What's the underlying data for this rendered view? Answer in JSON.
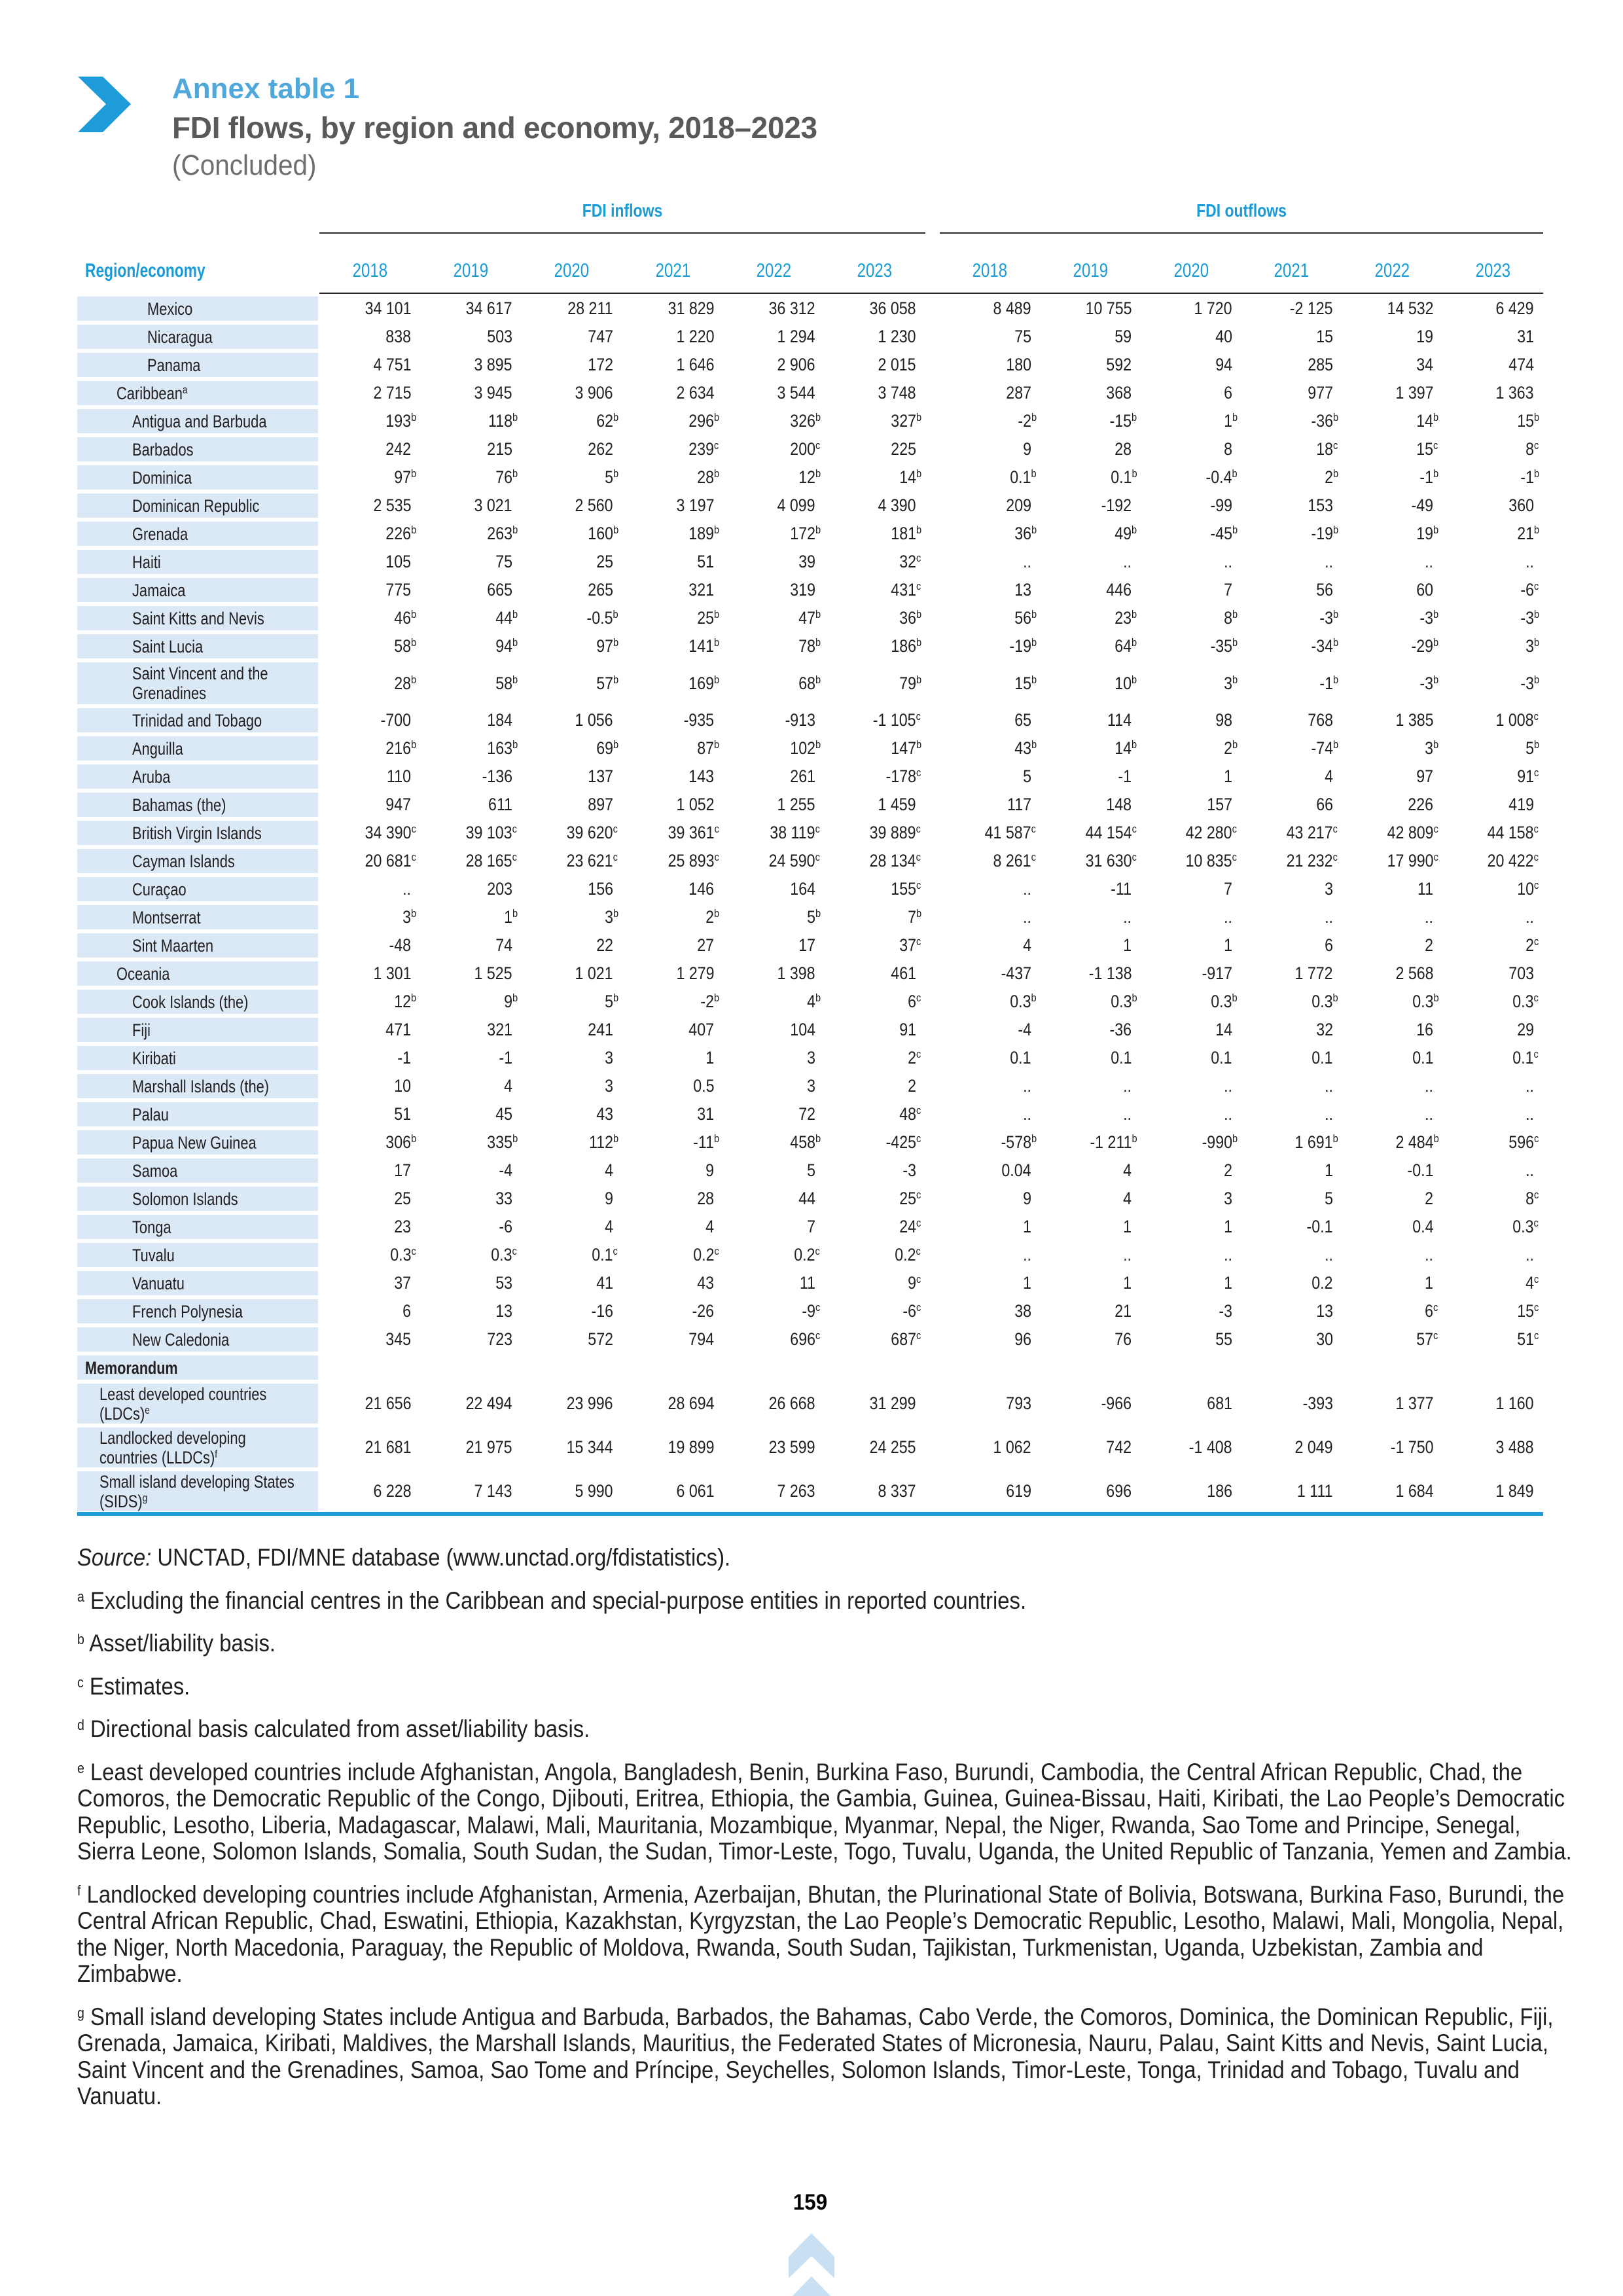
{
  "header": {
    "annex_label": "Annex table 1",
    "title": "FDI flows, by region and economy, 2018–2023",
    "subtitle": "(Concluded)"
  },
  "colors": {
    "accent_blue": "#1e9cd9",
    "header_text_blue": "#189bd7",
    "annex_label_blue": "#4fa8dc",
    "row_label_background": "#dbe9f6",
    "footer_chevron_blue": "#c9e0f3",
    "title_gray": "#58595b"
  },
  "icons": {
    "header_chevron": "right-chevron-icon",
    "footer_chevron": "up-double-chevron-icon"
  },
  "table": {
    "region_col_header": "Region/economy",
    "group_headers": [
      "FDI inflows",
      "FDI outflows"
    ],
    "years": [
      "2018",
      "2019",
      "2020",
      "2021",
      "2022",
      "2023"
    ],
    "rows": [
      {
        "label": "Mexico",
        "ind": "l3",
        "in": [
          "34 101",
          "34 617",
          "28 211",
          "31 829",
          "36 312",
          "36 058"
        ],
        "out": [
          "8 489",
          "10 755",
          "1 720",
          "-2 125",
          "14 532",
          "6 429"
        ]
      },
      {
        "label": "Nicaragua",
        "ind": "l3",
        "in": [
          "838",
          "503",
          "747",
          "1 220",
          "1 294",
          "1 230"
        ],
        "out": [
          "75",
          "59",
          "40",
          "15",
          "19",
          "31"
        ]
      },
      {
        "label": "Panama",
        "ind": "l3",
        "in": [
          "4 751",
          "3 895",
          "172",
          "1 646",
          "2 906",
          "2 015"
        ],
        "out": [
          "180",
          "592",
          "94",
          "285",
          "34",
          "474"
        ]
      },
      {
        "label": "Caribbean",
        "sup": "a",
        "ind": "l1",
        "in": [
          "2 715",
          "3 945",
          "3 906",
          "2 634",
          "3 544",
          "3 748"
        ],
        "out": [
          "287",
          "368",
          "6",
          "977",
          "1 397",
          "1 363"
        ]
      },
      {
        "label": "Antigua and Barbuda",
        "ind": "l2",
        "in": [
          "193^b",
          "118^b",
          "62^b",
          "296^b",
          "326^b",
          "327^b"
        ],
        "out": [
          "-2^b",
          "-15^b",
          "1^b",
          "-36^b",
          "14^b",
          "15^b"
        ]
      },
      {
        "label": "Barbados",
        "ind": "l2",
        "in": [
          "242",
          "215",
          "262",
          "239^c",
          "200^c",
          "225"
        ],
        "out": [
          "9",
          "28",
          "8",
          "18^c",
          "15^c",
          "8^c"
        ]
      },
      {
        "label": "Dominica",
        "ind": "l2",
        "in": [
          "97^b",
          "76^b",
          "5^b",
          "28^b",
          "12^b",
          "14^b"
        ],
        "out": [
          "0.1^b",
          "0.1^b",
          "-0.4^b",
          "2^b",
          "-1^b",
          "-1^b"
        ]
      },
      {
        "label": "Dominican Republic",
        "ind": "l2",
        "in": [
          "2 535",
          "3 021",
          "2 560",
          "3 197",
          "4 099",
          "4 390"
        ],
        "out": [
          "209",
          "-192",
          "-99",
          "153",
          "-49",
          "360"
        ]
      },
      {
        "label": "Grenada",
        "ind": "l2",
        "in": [
          "226^b",
          "263^b",
          "160^b",
          "189^b",
          "172^b",
          "181^b"
        ],
        "out": [
          "36^b",
          "49^b",
          "-45^b",
          "-19^b",
          "19^b",
          "21^b"
        ]
      },
      {
        "label": "Haiti",
        "ind": "l2",
        "in": [
          "105",
          "75",
          "25",
          "51",
          "39",
          "32^c"
        ],
        "out": [
          "..",
          "..",
          "..",
          "..",
          "..",
          ".."
        ]
      },
      {
        "label": "Jamaica",
        "ind": "l2",
        "in": [
          "775",
          "665",
          "265",
          "321",
          "319",
          "431^c"
        ],
        "out": [
          "13",
          "446",
          "7",
          "56",
          "60",
          "-6^c"
        ]
      },
      {
        "label": "Saint Kitts and Nevis",
        "ind": "l2",
        "in": [
          "46^b",
          "44^b",
          "-0.5^b",
          "25^b",
          "47^b",
          "36^b"
        ],
        "out": [
          "56^b",
          "23^b",
          "8^b",
          "-3^b",
          "-3^b",
          "-3^b"
        ]
      },
      {
        "label": "Saint Lucia",
        "ind": "l2",
        "in": [
          "58^b",
          "94^b",
          "97^b",
          "141^b",
          "78^b",
          "186^b"
        ],
        "out": [
          "-19^b",
          "64^b",
          "-35^b",
          "-34^b",
          "-29^b",
          "3^b"
        ]
      },
      {
        "label": "Saint Vincent and the Grenadines",
        "ind": "l2",
        "tall": "a",
        "in": [
          "28^b",
          "58^b",
          "57^b",
          "169^b",
          "68^b",
          "79^b"
        ],
        "out": [
          "15^b",
          "10^b",
          "3^b",
          "-1^b",
          "-3^b",
          "-3^b"
        ]
      },
      {
        "label": "Trinidad and Tobago",
        "ind": "l2",
        "in": [
          "-700",
          "184",
          "1 056",
          "-935",
          "-913",
          "-1 105^c"
        ],
        "out": [
          "65",
          "114",
          "98",
          "768",
          "1 385",
          "1 008^c"
        ]
      },
      {
        "label": "Anguilla",
        "ind": "l2",
        "in": [
          "216^b",
          "163^b",
          "69^b",
          "87^b",
          "102^b",
          "147^b"
        ],
        "out": [
          "43^b",
          "14^b",
          "2^b",
          "-74^b",
          "3^b",
          "5^b"
        ]
      },
      {
        "label": "Aruba",
        "ind": "l2",
        "in": [
          "110",
          "-136",
          "137",
          "143",
          "261",
          "-178^c"
        ],
        "out": [
          "5",
          "-1",
          "1",
          "4",
          "97",
          "91^c"
        ]
      },
      {
        "label": "Bahamas (the)",
        "ind": "l2",
        "in": [
          "947",
          "611",
          "897",
          "1 052",
          "1 255",
          "1 459"
        ],
        "out": [
          "117",
          "148",
          "157",
          "66",
          "226",
          "419"
        ]
      },
      {
        "label": "British Virgin Islands",
        "ind": "l2",
        "in": [
          "34 390^c",
          "39 103^c",
          "39 620^c",
          "39 361^c",
          "38 119^c",
          "39 889^c"
        ],
        "out": [
          "41 587^c",
          "44 154^c",
          "42 280^c",
          "43 217^c",
          "42 809^c",
          "44 158^c"
        ]
      },
      {
        "label": "Cayman Islands",
        "ind": "l2",
        "in": [
          "20 681^c",
          "28 165^c",
          "23 621^c",
          "25 893^c",
          "24 590^c",
          "28 134^c"
        ],
        "out": [
          "8 261^c",
          "31 630^c",
          "10 835^c",
          "21 232^c",
          "17 990^c",
          "20 422^c"
        ]
      },
      {
        "label": "Curaçao",
        "ind": "l2",
        "in": [
          "..",
          "203",
          "156",
          "146",
          "164",
          "155^c"
        ],
        "out": [
          "..",
          "-11",
          "7",
          "3",
          "11",
          "10^c"
        ]
      },
      {
        "label": "Montserrat",
        "ind": "l2",
        "in": [
          "3^b",
          "1^b",
          "3^b",
          "2^b",
          "5^b",
          "7^b"
        ],
        "out": [
          "..",
          "..",
          "..",
          "..",
          "..",
          ".."
        ]
      },
      {
        "label": "Sint Maarten",
        "ind": "l2",
        "in": [
          "-48",
          "74",
          "22",
          "27",
          "17",
          "37^c"
        ],
        "out": [
          "4",
          "1",
          "1",
          "6",
          "2",
          "2^c"
        ]
      },
      {
        "label": "Oceania",
        "ind": "l1",
        "in": [
          "1 301",
          "1 525",
          "1 021",
          "1 279",
          "1 398",
          "461"
        ],
        "out": [
          "-437",
          "-1 138",
          "-917",
          "1 772",
          "2 568",
          "703"
        ]
      },
      {
        "label": "Cook Islands (the)",
        "ind": "l2",
        "in": [
          "12^b",
          "9^b",
          "5^b",
          "-2^b",
          "4^b",
          "6^c"
        ],
        "out": [
          "0.3^b",
          "0.3^b",
          "0.3^b",
          "0.3^b",
          "0.3^b",
          "0.3^c"
        ]
      },
      {
        "label": "Fiji",
        "ind": "l2",
        "in": [
          "471",
          "321",
          "241",
          "407",
          "104",
          "91"
        ],
        "out": [
          "-4",
          "-36",
          "14",
          "32",
          "16",
          "29"
        ]
      },
      {
        "label": "Kiribati",
        "ind": "l2",
        "in": [
          "-1",
          "-1",
          "3",
          "1",
          "3",
          "2^c"
        ],
        "out": [
          "0.1",
          "0.1",
          "0.1",
          "0.1",
          "0.1",
          "0.1^c"
        ]
      },
      {
        "label": "Marshall Islands (the)",
        "ind": "l2",
        "in": [
          "10",
          "4",
          "3",
          "0.5",
          "3",
          "2"
        ],
        "out": [
          "..",
          "..",
          "..",
          "..",
          "..",
          ".."
        ]
      },
      {
        "label": "Palau",
        "ind": "l2",
        "in": [
          "51",
          "45",
          "43",
          "31",
          "72",
          "48^c"
        ],
        "out": [
          "..",
          "..",
          "..",
          "..",
          "..",
          ".."
        ]
      },
      {
        "label": "Papua New Guinea",
        "ind": "l2",
        "in": [
          "306^b",
          "335^b",
          "112^b",
          "-11^b",
          "458^b",
          "-425^c"
        ],
        "out": [
          "-578^b",
          "-1 211^b",
          "-990^b",
          "1 691^b",
          "2 484^b",
          "596^c"
        ]
      },
      {
        "label": "Samoa",
        "ind": "l2",
        "in": [
          "17",
          "-4",
          "4",
          "9",
          "5",
          "-3"
        ],
        "out": [
          "0.04",
          "4",
          "2",
          "1",
          "-0.1",
          ".."
        ]
      },
      {
        "label": "Solomon Islands",
        "ind": "l2",
        "in": [
          "25",
          "33",
          "9",
          "28",
          "44",
          "25^c"
        ],
        "out": [
          "9",
          "4",
          "3",
          "5",
          "2",
          "8^c"
        ]
      },
      {
        "label": "Tonga",
        "ind": "l2",
        "in": [
          "23",
          "-6",
          "4",
          "4",
          "7",
          "24^c"
        ],
        "out": [
          "1",
          "1",
          "1",
          "-0.1",
          "0.4",
          "0.3^c"
        ]
      },
      {
        "label": "Tuvalu",
        "ind": "l2",
        "in": [
          "0.3^c",
          "0.3^c",
          "0.1^c",
          "0.2^c",
          "0.2^c",
          "0.2^c"
        ],
        "out": [
          "..",
          "..",
          "..",
          "..",
          "..",
          ".."
        ]
      },
      {
        "label": "Vanuatu",
        "ind": "l2",
        "in": [
          "37",
          "53",
          "41",
          "43",
          "11",
          "9^c"
        ],
        "out": [
          "1",
          "1",
          "1",
          "0.2",
          "1",
          "4^c"
        ]
      },
      {
        "label": "French Polynesia",
        "ind": "l2",
        "in": [
          "6",
          "13",
          "-16",
          "-26",
          "-9^c",
          "-6^c"
        ],
        "out": [
          "38",
          "21",
          "-3",
          "13",
          "6^c",
          "15^c"
        ]
      },
      {
        "label": "New Caledonia",
        "ind": "l2",
        "in": [
          "345",
          "723",
          "572",
          "794",
          "696^c",
          "687^c"
        ],
        "out": [
          "96",
          "76",
          "55",
          "30",
          "57^c",
          "51^c"
        ]
      },
      {
        "label": "Memorandum",
        "section": true
      },
      {
        "label": "Least developed countries (LDCs)",
        "sup": "e",
        "ind": "memo",
        "tall": "b",
        "in": [
          "21 656",
          "22 494",
          "23 996",
          "28 694",
          "26 668",
          "31 299"
        ],
        "out": [
          "793",
          "-966",
          "681",
          "-393",
          "1 377",
          "1 160"
        ]
      },
      {
        "label": "Landlocked developing countries (LLDCs)",
        "sup": "f",
        "ind": "memo",
        "tall": "b",
        "in": [
          "21 681",
          "21 975",
          "15 344",
          "19 899",
          "23 599",
          "24 255"
        ],
        "out": [
          "1 062",
          "742",
          "-1 408",
          "2 049",
          "-1 750",
          "3 488"
        ]
      },
      {
        "label": "Small island developing States (SIDS)",
        "sup": "g",
        "ind": "memo",
        "tall": "b",
        "in": [
          "6 228",
          "7 143",
          "5 990",
          "6 061",
          "7 263",
          "8 337"
        ],
        "out": [
          "619",
          "696",
          "186",
          "1 111",
          "1 684",
          "1 849"
        ]
      }
    ]
  },
  "footnotes": {
    "source_label": "Source:",
    "source_text": "UNCTAD, FDI/MNE database (www.unctad.org/fdistatistics).",
    "notes": [
      {
        "sup": "a",
        "text": "Excluding the financial centres in the Caribbean and special-purpose entities in reported countries."
      },
      {
        "sup": "b",
        "text": "Asset/liability basis."
      },
      {
        "sup": "c",
        "text": "Estimates."
      },
      {
        "sup": "d",
        "text": "Directional basis calculated from asset/liability basis."
      },
      {
        "sup": "e",
        "text": "Least developed countries include Afghanistan, Angola, Bangladesh, Benin, Burkina Faso, Burundi, Cambodia, the Central African Republic, Chad, the Comoros, the Democratic Republic of the Congo, Djibouti, Eritrea, Ethiopia, the Gambia, Guinea, Guinea-Bissau, Haiti, Kiribati, the Lao People’s Democratic Republic, Lesotho, Liberia, Madagascar, Malawi, Mali, Mauritania, Mozambique, Myanmar, Nepal, the Niger, Rwanda, Sao Tome and Principe, Senegal, Sierra Leone, Solomon Islands, Somalia, South Sudan, the Sudan, Timor-Leste, Togo, Tuvalu, Uganda, the United Republic of Tanzania, Yemen and Zambia."
      },
      {
        "sup": "f",
        "text": "Landlocked developing countries include Afghanistan, Armenia, Azerbaijan, Bhutan, the Plurinational State of Bolivia, Botswana, Burkina Faso, Burundi, the Central African Republic, Chad, Eswatini, Ethiopia, Kazakhstan, Kyrgyzstan, the Lao People’s Democratic Republic, Lesotho, Malawi, Mali, Mongolia, Nepal, the Niger, North Macedonia, Paraguay, the Republic of Moldova, Rwanda, South Sudan, Tajikistan, Turkmenistan, Uganda, Uzbekistan, Zambia and Zimbabwe."
      },
      {
        "sup": "g",
        "text": "Small island developing States include Antigua and Barbuda, Barbados, the Bahamas, Cabo Verde, the Comoros, Dominica, the Dominican Republic, Fiji, Grenada, Jamaica, Kiribati, Maldives, the Marshall Islands, Mauritius, the Federated States of Micronesia, Nauru, Palau, Saint Kitts and Nevis, Saint Lucia, Saint Vincent and the Grenadines, Samoa, Sao Tome and Príncipe, Seychelles, Solomon Islands, Timor-Leste, Tonga, Trinidad and Tobago, Tuvalu and Vanuatu."
      }
    ]
  },
  "footer": {
    "page_number": "159"
  }
}
